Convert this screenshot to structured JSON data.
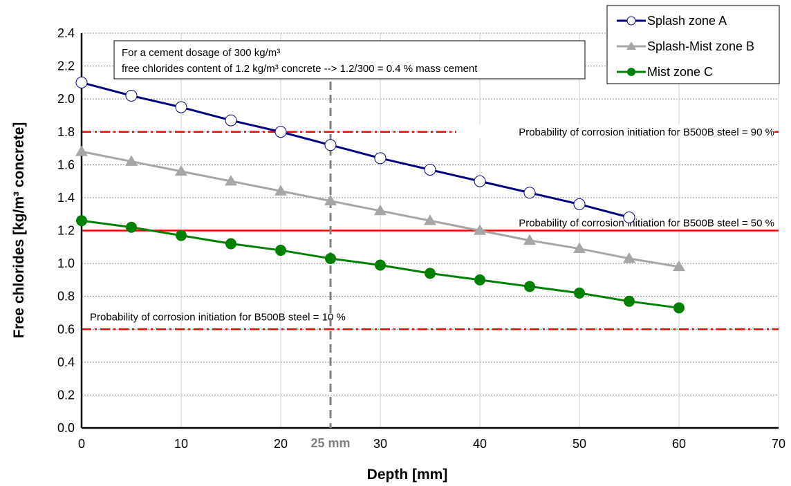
{
  "chart_data": {
    "type": "line",
    "title": "",
    "xlabel": "Depth [mm]",
    "ylabel": "Free chlorides [kg/m³ concrete]",
    "xlim": [
      0,
      70
    ],
    "ylim": [
      0,
      2.4
    ],
    "x_ticks": [
      "0",
      "10",
      "20",
      "30",
      "40",
      "50",
      "60",
      "70"
    ],
    "y_ticks": [
      "0.0",
      "0.2",
      "0.4",
      "0.6",
      "0.8",
      "1.0",
      "1.2",
      "1.4",
      "1.6",
      "1.8",
      "2.0",
      "2.2",
      "2.4"
    ],
    "grid": true,
    "legend_position": "top-right",
    "series": [
      {
        "name": "Splash zone A",
        "color": "#000080",
        "marker": "open-circle",
        "x": [
          0,
          5,
          10,
          15,
          20,
          25,
          30,
          35,
          40,
          45,
          50,
          55
        ],
        "y": [
          2.1,
          2.02,
          1.95,
          1.87,
          1.8,
          1.72,
          1.64,
          1.57,
          1.5,
          1.43,
          1.36,
          1.28
        ]
      },
      {
        "name": "Splash-Mist zone B",
        "color": "#a6a6a6",
        "marker": "triangle",
        "x": [
          0,
          5,
          10,
          15,
          20,
          25,
          30,
          35,
          40,
          45,
          50,
          55,
          60
        ],
        "y": [
          1.68,
          1.62,
          1.56,
          1.5,
          1.44,
          1.38,
          1.32,
          1.26,
          1.2,
          1.14,
          1.09,
          1.03,
          0.98
        ]
      },
      {
        "name": "Mist zone C",
        "color": "#008000",
        "marker": "filled-circle",
        "x": [
          0,
          5,
          10,
          15,
          20,
          25,
          30,
          35,
          40,
          45,
          50,
          55,
          60
        ],
        "y": [
          1.26,
          1.22,
          1.17,
          1.12,
          1.08,
          1.03,
          0.99,
          0.94,
          0.9,
          0.86,
          0.82,
          0.77,
          0.73
        ]
      }
    ],
    "reference_lines": [
      {
        "y": 1.8,
        "style": "dashdot",
        "color": "#ff0000",
        "label": "Probability of corrosion initiation for B500B steel = 90 %"
      },
      {
        "y": 1.2,
        "style": "solid",
        "color": "#ff0000",
        "label": "Probability of corrosion initiation for B500B steel = 50 %"
      },
      {
        "y": 0.6,
        "style": "dashdot",
        "color": "#ff0000",
        "label": "Probability of corrosion initiation for B500B steel = 10 %"
      }
    ],
    "vertical_marker": {
      "x": 25,
      "label": "25 mm",
      "color": "#808080"
    },
    "annotation_box": {
      "line1": "For a cement dosage of 300 kg/m³",
      "line2": "free chlorides content of 1.2 kg/m³ concrete --> 1.2/300 = 0.4 % mass cement"
    }
  }
}
